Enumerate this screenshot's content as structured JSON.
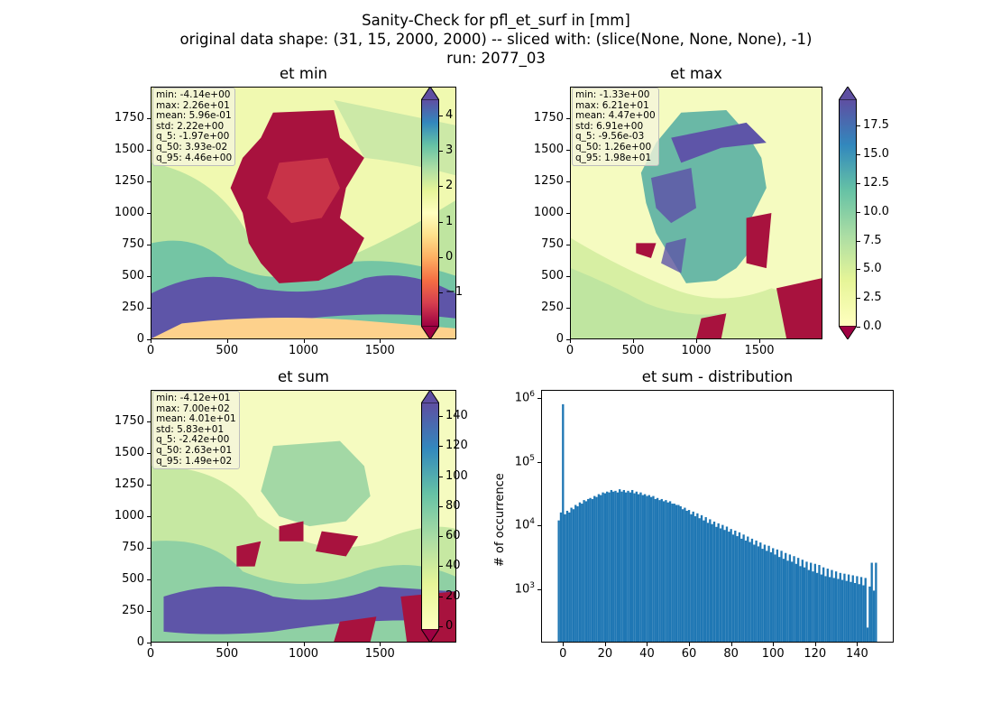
{
  "title_lines": [
    "Sanity-Check for pfl_et_surf in [mm]",
    "original data shape: (31, 15, 2000, 2000) -- sliced with: (slice(None, None, None), -1)",
    "run: 2077_03"
  ],
  "chart_data": [
    {
      "type": "heatmap",
      "title": "et min",
      "colormap": "Spectral",
      "x_ticks": [
        "0",
        "500",
        "1000",
        "1500"
      ],
      "y_ticks": [
        "0",
        "250",
        "500",
        "750",
        "1000",
        "1250",
        "1500",
        "1750"
      ],
      "xlim": [
        0,
        2000
      ],
      "ylim": [
        0,
        2000
      ],
      "colorbar_ticks": [
        "−1",
        "0",
        "1",
        "2",
        "3",
        "4"
      ],
      "colorbar_range": [
        -1.97,
        4.46
      ],
      "stats": [
        "min: -4.14e+00",
        "max: 2.26e+01",
        "mean: 5.96e-01",
        "std: 2.22e+00",
        "q_5: -1.97e+00",
        "q_50: 3.93e-02",
        "q_95: 4.46e+00"
      ]
    },
    {
      "type": "heatmap",
      "title": "et max",
      "colormap": "Spectral",
      "x_ticks": [
        "0",
        "500",
        "1000",
        "1500"
      ],
      "y_ticks": [
        "0",
        "250",
        "500",
        "750",
        "1000",
        "1250",
        "1500",
        "1750"
      ],
      "xlim": [
        0,
        2000
      ],
      "ylim": [
        0,
        2000
      ],
      "colorbar_ticks": [
        "0.0",
        "2.5",
        "5.0",
        "7.5",
        "10.0",
        "12.5",
        "15.0",
        "17.5"
      ],
      "colorbar_range": [
        0.0,
        19.8
      ],
      "stats": [
        "min: -1.33e+00",
        "max: 6.21e+01",
        "mean: 4.47e+00",
        "std: 6.91e+00",
        "q_5: -9.56e-03",
        "q_50: 1.26e+00",
        "q_95: 1.98e+01"
      ]
    },
    {
      "type": "heatmap",
      "title": "et sum",
      "colormap": "Spectral",
      "x_ticks": [
        "0",
        "500",
        "1000",
        "1500"
      ],
      "y_ticks": [
        "0",
        "250",
        "500",
        "750",
        "1000",
        "1250",
        "1500",
        "1750"
      ],
      "xlim": [
        0,
        2000
      ],
      "ylim": [
        0,
        2000
      ],
      "colorbar_ticks": [
        "0",
        "20",
        "40",
        "60",
        "80",
        "100",
        "120",
        "140"
      ],
      "colorbar_range": [
        -2.42,
        149
      ],
      "stats": [
        "min: -4.12e+01",
        "max: 7.00e+02",
        "mean: 4.01e+01",
        "std: 5.83e+01",
        "q_5: -2.42e+00",
        "q_50: 2.63e+01",
        "q_95: 1.49e+02"
      ]
    },
    {
      "type": "bar",
      "title": "et sum - distribution",
      "ylabel": "# of occurrence",
      "yscale": "log",
      "ylim": [
        150,
        1300000
      ],
      "xlim": [
        -10,
        157
      ],
      "x_ticks": [
        "0",
        "20",
        "40",
        "60",
        "80",
        "100",
        "120",
        "140"
      ],
      "y_ticks": [
        {
          "base": "10",
          "exp": "3"
        },
        {
          "base": "10",
          "exp": "4"
        },
        {
          "base": "10",
          "exp": "5"
        },
        {
          "base": "10",
          "exp": "6"
        }
      ],
      "bar_color": "#1f77b4",
      "bins": [
        {
          "x": -2,
          "y": 12000
        },
        {
          "x": -1,
          "y": 16000
        },
        {
          "x": 0,
          "y": 800000
        },
        {
          "x": 1,
          "y": 15000
        },
        {
          "x": 2,
          "y": 17000
        },
        {
          "x": 3,
          "y": 16000
        },
        {
          "x": 4,
          "y": 19000
        },
        {
          "x": 5,
          "y": 18000
        },
        {
          "x": 6,
          "y": 21000
        },
        {
          "x": 7,
          "y": 20000
        },
        {
          "x": 8,
          "y": 23000
        },
        {
          "x": 9,
          "y": 22000
        },
        {
          "x": 10,
          "y": 25000
        },
        {
          "x": 11,
          "y": 24000
        },
        {
          "x": 12,
          "y": 26000
        },
        {
          "x": 13,
          "y": 27000
        },
        {
          "x": 14,
          "y": 26000
        },
        {
          "x": 15,
          "y": 29000
        },
        {
          "x": 16,
          "y": 28000
        },
        {
          "x": 17,
          "y": 31000
        },
        {
          "x": 18,
          "y": 30000
        },
        {
          "x": 19,
          "y": 33000
        },
        {
          "x": 20,
          "y": 32000
        },
        {
          "x": 21,
          "y": 34000
        },
        {
          "x": 22,
          "y": 33000
        },
        {
          "x": 23,
          "y": 36000
        },
        {
          "x": 24,
          "y": 34000
        },
        {
          "x": 25,
          "y": 35000
        },
        {
          "x": 26,
          "y": 33000
        },
        {
          "x": 27,
          "y": 37000
        },
        {
          "x": 28,
          "y": 34000
        },
        {
          "x": 29,
          "y": 36000
        },
        {
          "x": 30,
          "y": 33000
        },
        {
          "x": 31,
          "y": 35000
        },
        {
          "x": 32,
          "y": 33000
        },
        {
          "x": 33,
          "y": 36000
        },
        {
          "x": 34,
          "y": 32000
        },
        {
          "x": 35,
          "y": 34000
        },
        {
          "x": 36,
          "y": 31000
        },
        {
          "x": 37,
          "y": 33000
        },
        {
          "x": 38,
          "y": 30000
        },
        {
          "x": 39,
          "y": 31000
        },
        {
          "x": 40,
          "y": 29000
        },
        {
          "x": 41,
          "y": 30000
        },
        {
          "x": 42,
          "y": 28000
        },
        {
          "x": 43,
          "y": 29000
        },
        {
          "x": 44,
          "y": 26000
        },
        {
          "x": 45,
          "y": 27000
        },
        {
          "x": 46,
          "y": 25000
        },
        {
          "x": 47,
          "y": 26000
        },
        {
          "x": 48,
          "y": 24000
        },
        {
          "x": 49,
          "y": 25000
        },
        {
          "x": 50,
          "y": 23000
        },
        {
          "x": 51,
          "y": 24000
        },
        {
          "x": 52,
          "y": 22000
        },
        {
          "x": 53,
          "y": 22000
        },
        {
          "x": 54,
          "y": 21000
        },
        {
          "x": 55,
          "y": 21000
        },
        {
          "x": 56,
          "y": 20000
        },
        {
          "x": 57,
          "y": 18000
        },
        {
          "x": 58,
          "y": 19000
        },
        {
          "x": 59,
          "y": 17000
        },
        {
          "x": 60,
          "y": 17500
        },
        {
          "x": 61,
          "y": 15000
        },
        {
          "x": 62,
          "y": 16500
        },
        {
          "x": 63,
          "y": 14000
        },
        {
          "x": 64,
          "y": 15500
        },
        {
          "x": 65,
          "y": 13000
        },
        {
          "x": 66,
          "y": 14500
        },
        {
          "x": 67,
          "y": 12000
        },
        {
          "x": 68,
          "y": 13500
        },
        {
          "x": 69,
          "y": 11000
        },
        {
          "x": 70,
          "y": 12500
        },
        {
          "x": 71,
          "y": 10500
        },
        {
          "x": 72,
          "y": 11500
        },
        {
          "x": 73,
          "y": 9500
        },
        {
          "x": 74,
          "y": 10800
        },
        {
          "x": 75,
          "y": 9000
        },
        {
          "x": 76,
          "y": 10200
        },
        {
          "x": 77,
          "y": 8500
        },
        {
          "x": 78,
          "y": 9600
        },
        {
          "x": 79,
          "y": 8000
        },
        {
          "x": 80,
          "y": 8800
        },
        {
          "x": 81,
          "y": 7200
        },
        {
          "x": 82,
          "y": 8300
        },
        {
          "x": 83,
          "y": 6800
        },
        {
          "x": 84,
          "y": 7800
        },
        {
          "x": 85,
          "y": 6200
        },
        {
          "x": 86,
          "y": 7200
        },
        {
          "x": 87,
          "y": 5800
        },
        {
          "x": 88,
          "y": 6700
        },
        {
          "x": 89,
          "y": 5500
        },
        {
          "x": 90,
          "y": 6200
        },
        {
          "x": 91,
          "y": 5000
        },
        {
          "x": 92,
          "y": 5800
        },
        {
          "x": 93,
          "y": 4700
        },
        {
          "x": 94,
          "y": 5400
        },
        {
          "x": 95,
          "y": 4300
        },
        {
          "x": 96,
          "y": 5000
        },
        {
          "x": 97,
          "y": 4000
        },
        {
          "x": 98,
          "y": 4800
        },
        {
          "x": 99,
          "y": 3800
        },
        {
          "x": 100,
          "y": 4400
        },
        {
          "x": 101,
          "y": 3500
        },
        {
          "x": 102,
          "y": 4200
        },
        {
          "x": 103,
          "y": 3200
        },
        {
          "x": 104,
          "y": 4000
        },
        {
          "x": 105,
          "y": 3000
        },
        {
          "x": 106,
          "y": 3700
        },
        {
          "x": 107,
          "y": 2800
        },
        {
          "x": 108,
          "y": 3500
        },
        {
          "x": 109,
          "y": 2700
        },
        {
          "x": 110,
          "y": 3300
        },
        {
          "x": 111,
          "y": 2500
        },
        {
          "x": 112,
          "y": 3100
        },
        {
          "x": 113,
          "y": 2300
        },
        {
          "x": 114,
          "y": 2900
        },
        {
          "x": 115,
          "y": 2200
        },
        {
          "x": 116,
          "y": 2700
        },
        {
          "x": 117,
          "y": 2000
        },
        {
          "x": 118,
          "y": 2600
        },
        {
          "x": 119,
          "y": 1900
        },
        {
          "x": 120,
          "y": 2500
        },
        {
          "x": 121,
          "y": 1800
        },
        {
          "x": 122,
          "y": 2400
        },
        {
          "x": 123,
          "y": 1700
        },
        {
          "x": 124,
          "y": 2200
        },
        {
          "x": 125,
          "y": 1600
        },
        {
          "x": 126,
          "y": 2100
        },
        {
          "x": 127,
          "y": 1550
        },
        {
          "x": 128,
          "y": 2000
        },
        {
          "x": 129,
          "y": 1500
        },
        {
          "x": 130,
          "y": 1900
        },
        {
          "x": 131,
          "y": 1450
        },
        {
          "x": 132,
          "y": 1800
        },
        {
          "x": 133,
          "y": 1400
        },
        {
          "x": 134,
          "y": 1750
        },
        {
          "x": 135,
          "y": 1350
        },
        {
          "x": 136,
          "y": 1700
        },
        {
          "x": 137,
          "y": 1300
        },
        {
          "x": 138,
          "y": 1650
        },
        {
          "x": 139,
          "y": 1250
        },
        {
          "x": 140,
          "y": 1600
        },
        {
          "x": 141,
          "y": 1200
        },
        {
          "x": 142,
          "y": 1550
        },
        {
          "x": 143,
          "y": 1150
        },
        {
          "x": 144,
          "y": 1500
        },
        {
          "x": 145,
          "y": 250
        },
        {
          "x": 146,
          "y": 1100
        },
        {
          "x": 147,
          "y": 2600
        },
        {
          "x": 148,
          "y": 950
        },
        {
          "x": 149,
          "y": 2600
        }
      ]
    }
  ]
}
